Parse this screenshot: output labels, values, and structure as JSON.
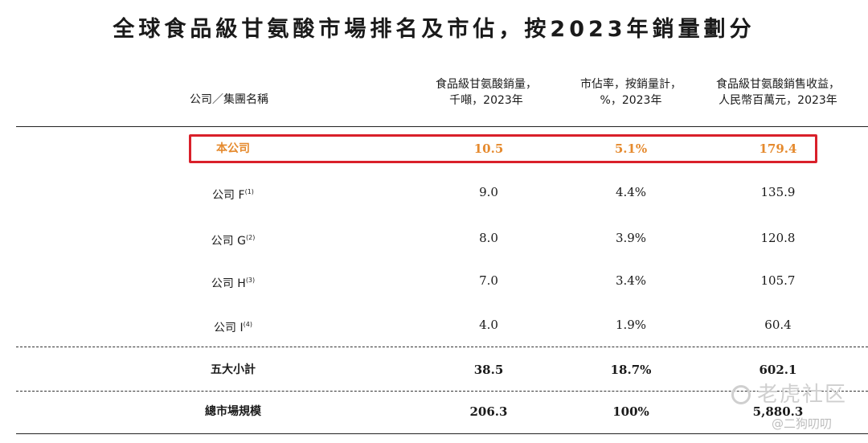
{
  "title": "全球食品級甘氨酸市場排名及市佔，按2023年銷量劃分",
  "headers": {
    "company": "公司／集團名稱",
    "col1": [
      "食品級甘氨酸銷量，",
      "千噸，2023年"
    ],
    "col2": [
      "市佔率，按銷量計，",
      "%，2023年"
    ],
    "col3": [
      "食品級甘氨酸銷售收益，",
      "人民幣百萬元，2023年"
    ]
  },
  "rows": [
    {
      "name": "本公司",
      "note": "",
      "volume": "10.5",
      "share": "5.1%",
      "revenue": "179.4"
    },
    {
      "name": "公司 F",
      "note": "(1)",
      "volume": "9.0",
      "share": "4.4%",
      "revenue": "135.9"
    },
    {
      "name": "公司 G",
      "note": "(2)",
      "volume": "8.0",
      "share": "3.9%",
      "revenue": "120.8"
    },
    {
      "name": "公司 H",
      "note": "(3)",
      "volume": "7.0",
      "share": "3.4%",
      "revenue": "105.7"
    },
    {
      "name": "公司 I",
      "note": "(4)",
      "volume": "4.0",
      "share": "1.9%",
      "revenue": "60.4"
    }
  ],
  "subtotal": {
    "name": "五大小計",
    "volume": "38.5",
    "share": "18.7%",
    "revenue": "602.1"
  },
  "total": {
    "name": "總市場規模",
    "volume": "206.3",
    "share": "100%",
    "revenue": "5,880.3"
  },
  "watermarks": {
    "primary": "老虎社区",
    "secondary": "@二狗叨叨"
  },
  "colors": {
    "highlight_text": "#e58a2e",
    "highlight_border": "#d9202a"
  }
}
